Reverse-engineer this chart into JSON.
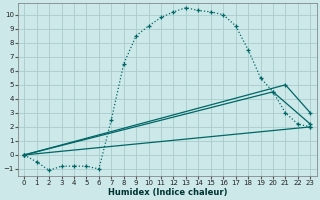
{
  "xlabel": "Humidex (Indice chaleur)",
  "bg_color": "#cce8e8",
  "grid_color": "#aacccc",
  "line_color": "#006666",
  "xlim": [
    -0.5,
    23.5
  ],
  "ylim": [
    -1.5,
    10.8
  ],
  "yticks": [
    -1,
    0,
    1,
    2,
    3,
    4,
    5,
    6,
    7,
    8,
    9,
    10
  ],
  "xticks": [
    0,
    1,
    2,
    3,
    4,
    5,
    6,
    7,
    8,
    9,
    10,
    11,
    12,
    13,
    14,
    15,
    16,
    17,
    18,
    19,
    20,
    21,
    22,
    23
  ],
  "series1_x": [
    0,
    1,
    2,
    3,
    4,
    5,
    6,
    7,
    8,
    9,
    10,
    11,
    12,
    13,
    14,
    15,
    16,
    17,
    18,
    19,
    20,
    21,
    22,
    23
  ],
  "series1_y": [
    0.0,
    -0.5,
    -1.1,
    -0.8,
    -0.8,
    -0.8,
    -1.0,
    2.5,
    6.5,
    8.5,
    9.2,
    9.8,
    10.2,
    10.5,
    10.3,
    10.2,
    10.0,
    9.2,
    7.5,
    5.5,
    4.5,
    3.0,
    2.2,
    2.0
  ],
  "line2_x": [
    0,
    23
  ],
  "line2_y": [
    0.0,
    2.0
  ],
  "line3_x": [
    0,
    20,
    23
  ],
  "line3_y": [
    0.0,
    4.5,
    2.2
  ],
  "line4_x": [
    0,
    21,
    23
  ],
  "line4_y": [
    0.0,
    5.0,
    3.0
  ]
}
